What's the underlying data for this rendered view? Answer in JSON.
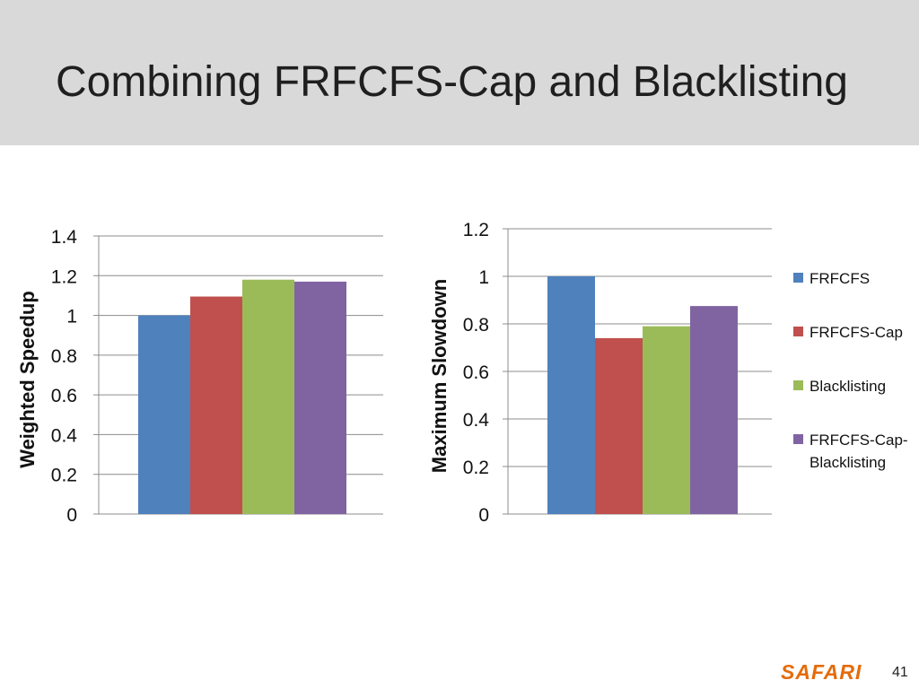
{
  "slide": {
    "title": "Combining FRFCFS-Cap and Blacklisting",
    "brand": "SAFARI",
    "page_number": "41"
  },
  "colors": {
    "title_band": "#d9d9d9",
    "brand": "#e46c0a",
    "gridline": "#8c8c8c"
  },
  "chart_data": [
    {
      "type": "bar",
      "title": "",
      "xlabel": "",
      "ylabel": "Weighted  Speedup",
      "ylim": [
        0,
        1.4
      ],
      "yticks": [
        0,
        0.2,
        0.4,
        0.6,
        0.8,
        1,
        1.2,
        1.4
      ],
      "ytick_labels": [
        "0",
        "0.2",
        "0.4",
        "0.6",
        "0.8",
        "1",
        "1.2",
        "1.4"
      ],
      "grid": true,
      "series": [
        {
          "name": "FRFCFS",
          "color": "#4f81bd",
          "values": [
            1.0
          ]
        },
        {
          "name": "FRFCFS-Cap",
          "color": "#c0504d",
          "values": [
            1.095
          ]
        },
        {
          "name": "Blacklisting",
          "color": "#9bbb59",
          "values": [
            1.18
          ]
        },
        {
          "name": "FRFCFS-Cap-Blacklisting",
          "color": "#8064a2",
          "values": [
            1.17
          ]
        }
      ]
    },
    {
      "type": "bar",
      "title": "",
      "xlabel": "",
      "ylabel": "Maximum Slowdown",
      "ylim": [
        0,
        1.2
      ],
      "yticks": [
        0,
        0.2,
        0.4,
        0.6,
        0.8,
        1,
        1.2
      ],
      "ytick_labels": [
        "0",
        "0.2",
        "0.4",
        "0.6",
        "0.8",
        "1",
        "1.2"
      ],
      "grid": true,
      "legend_position": "right",
      "legend": [
        {
          "label_lines": [
            "FRFCFS"
          ],
          "color": "#4f81bd"
        },
        {
          "label_lines": [
            "FRFCFS-Cap"
          ],
          "color": "#c0504d"
        },
        {
          "label_lines": [
            "Blacklisting"
          ],
          "color": "#9bbb59"
        },
        {
          "label_lines": [
            "FRFCFS-Cap-",
            "Blacklisting"
          ],
          "color": "#8064a2"
        }
      ],
      "series": [
        {
          "name": "FRFCFS",
          "color": "#4f81bd",
          "values": [
            1.0
          ]
        },
        {
          "name": "FRFCFS-Cap",
          "color": "#c0504d",
          "values": [
            0.74
          ]
        },
        {
          "name": "Blacklisting",
          "color": "#9bbb59",
          "values": [
            0.79
          ]
        },
        {
          "name": "FRFCFS-Cap-Blacklisting",
          "color": "#8064a2",
          "values": [
            0.875
          ]
        }
      ]
    }
  ]
}
